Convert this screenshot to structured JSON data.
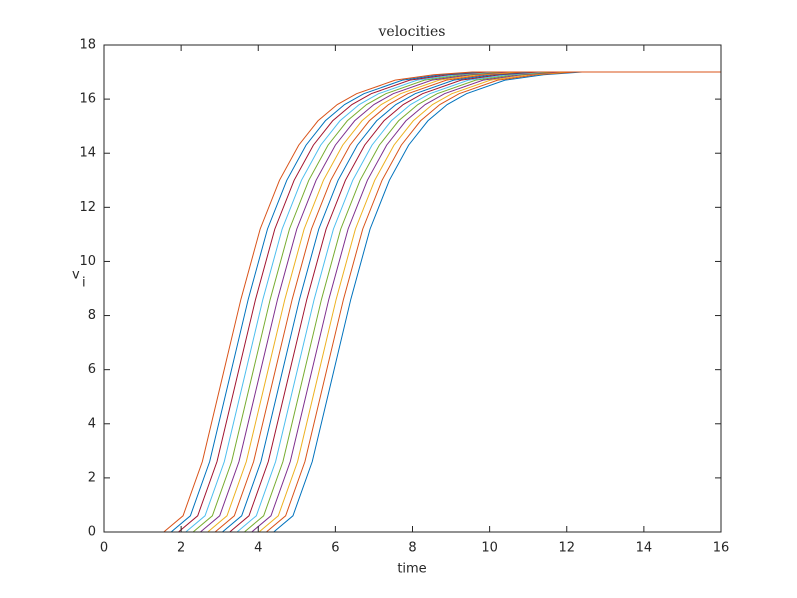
{
  "chart_data": {
    "type": "line",
    "title": "velocities",
    "xlabel": "time",
    "ylabel": "v",
    "ylabel_subscript": "i",
    "xlim": [
      0,
      16
    ],
    "ylim": [
      0,
      18
    ],
    "xticks": [
      0,
      2,
      4,
      6,
      8,
      10,
      12,
      14,
      16
    ],
    "yticks": [
      0,
      2,
      4,
      6,
      8,
      10,
      12,
      14,
      16,
      18
    ],
    "series": [
      {
        "color": "#0072BD",
        "x": [
          0,
          4.4,
          4.9,
          5.4,
          5.9,
          6.4,
          6.9,
          7.4,
          7.9,
          8.4,
          8.9,
          9.4,
          10.4,
          11.4,
          12.4,
          16
        ],
        "values": [
          0,
          0,
          0.6,
          2.6,
          5.6,
          8.6,
          11.2,
          13,
          14.3,
          15.2,
          15.8,
          16.2,
          16.7,
          16.9,
          17,
          17
        ]
      },
      {
        "color": "#D95319",
        "x": [
          0,
          4.21,
          4.71,
          5.21,
          5.71,
          6.21,
          6.71,
          7.21,
          7.71,
          8.21,
          8.71,
          9.21,
          10.21,
          11.21,
          12.21,
          16
        ],
        "values": [
          0,
          0,
          0.6,
          2.6,
          5.6,
          8.6,
          11.2,
          13,
          14.3,
          15.2,
          15.8,
          16.2,
          16.7,
          16.9,
          17,
          17
        ]
      },
      {
        "color": "#EDB120",
        "x": [
          0,
          4.02,
          4.52,
          5.02,
          5.52,
          6.02,
          6.52,
          7.02,
          7.52,
          8.02,
          8.52,
          9.02,
          10.02,
          11.02,
          12.02,
          16
        ],
        "values": [
          0,
          0,
          0.6,
          2.6,
          5.6,
          8.6,
          11.2,
          13,
          14.3,
          15.2,
          15.8,
          16.2,
          16.7,
          16.9,
          17,
          17
        ]
      },
      {
        "color": "#7E2F8E",
        "x": [
          0,
          3.83,
          4.33,
          4.83,
          5.33,
          5.83,
          6.33,
          6.83,
          7.33,
          7.83,
          8.33,
          8.83,
          9.83,
          10.83,
          11.83,
          16
        ],
        "values": [
          0,
          0,
          0.6,
          2.6,
          5.6,
          8.6,
          11.2,
          13,
          14.3,
          15.2,
          15.8,
          16.2,
          16.7,
          16.9,
          17,
          17
        ]
      },
      {
        "color": "#77AC30",
        "x": [
          0,
          3.64,
          4.14,
          4.64,
          5.14,
          5.64,
          6.14,
          6.64,
          7.14,
          7.64,
          8.14,
          8.64,
          9.64,
          10.64,
          11.64,
          16
        ],
        "values": [
          0,
          0,
          0.6,
          2.6,
          5.6,
          8.6,
          11.2,
          13,
          14.3,
          15.2,
          15.8,
          16.2,
          16.7,
          16.9,
          17,
          17
        ]
      },
      {
        "color": "#4DBEEE",
        "x": [
          0,
          3.45,
          3.95,
          4.45,
          4.95,
          5.45,
          5.95,
          6.45,
          6.95,
          7.45,
          7.95,
          8.45,
          9.45,
          10.45,
          11.45,
          16
        ],
        "values": [
          0,
          0,
          0.6,
          2.6,
          5.6,
          8.6,
          11.2,
          13,
          14.3,
          15.2,
          15.8,
          16.2,
          16.7,
          16.9,
          17,
          17
        ]
      },
      {
        "color": "#A2142F",
        "x": [
          0,
          3.26,
          3.76,
          4.26,
          4.76,
          5.26,
          5.76,
          6.26,
          6.76,
          7.26,
          7.76,
          8.26,
          9.26,
          10.26,
          11.26,
          16
        ],
        "values": [
          0,
          0,
          0.6,
          2.6,
          5.6,
          8.6,
          11.2,
          13,
          14.3,
          15.2,
          15.8,
          16.2,
          16.7,
          16.9,
          17,
          17
        ]
      },
      {
        "color": "#0072BD",
        "x": [
          0,
          3.07,
          3.57,
          4.07,
          4.57,
          5.07,
          5.57,
          6.07,
          6.57,
          7.07,
          7.57,
          8.07,
          9.07,
          10.07,
          11.07,
          16
        ],
        "values": [
          0,
          0,
          0.6,
          2.6,
          5.6,
          8.6,
          11.2,
          13,
          14.3,
          15.2,
          15.8,
          16.2,
          16.7,
          16.9,
          17,
          17
        ]
      },
      {
        "color": "#D95319",
        "x": [
          0,
          2.88,
          3.38,
          3.88,
          4.38,
          4.88,
          5.38,
          5.88,
          6.38,
          6.88,
          7.38,
          7.88,
          8.88,
          9.88,
          10.88,
          16
        ],
        "values": [
          0,
          0,
          0.6,
          2.6,
          5.6,
          8.6,
          11.2,
          13,
          14.3,
          15.2,
          15.8,
          16.2,
          16.7,
          16.9,
          17,
          17
        ]
      },
      {
        "color": "#EDB120",
        "x": [
          0,
          2.69,
          3.19,
          3.69,
          4.19,
          4.69,
          5.19,
          5.69,
          6.19,
          6.69,
          7.19,
          7.69,
          8.69,
          9.69,
          10.69,
          16
        ],
        "values": [
          0,
          0,
          0.6,
          2.6,
          5.6,
          8.6,
          11.2,
          13,
          14.3,
          15.2,
          15.8,
          16.2,
          16.7,
          16.9,
          17,
          17
        ]
      },
      {
        "color": "#7E2F8E",
        "x": [
          0,
          2.5,
          3,
          3.5,
          4,
          4.5,
          5,
          5.5,
          6,
          6.5,
          7,
          7.5,
          8.5,
          9.5,
          10.5,
          16
        ],
        "values": [
          0,
          0,
          0.6,
          2.6,
          5.6,
          8.6,
          11.2,
          13,
          14.3,
          15.2,
          15.8,
          16.2,
          16.7,
          16.9,
          17,
          17
        ]
      },
      {
        "color": "#77AC30",
        "x": [
          0,
          2.31,
          2.81,
          3.31,
          3.81,
          4.31,
          4.81,
          5.31,
          5.81,
          6.31,
          6.81,
          7.31,
          8.31,
          9.31,
          10.31,
          16
        ],
        "values": [
          0,
          0,
          0.6,
          2.6,
          5.6,
          8.6,
          11.2,
          13,
          14.3,
          15.2,
          15.8,
          16.2,
          16.7,
          16.9,
          17,
          17
        ]
      },
      {
        "color": "#4DBEEE",
        "x": [
          0,
          2.12,
          2.62,
          3.12,
          3.62,
          4.12,
          4.62,
          5.12,
          5.62,
          6.12,
          6.62,
          7.12,
          8.12,
          9.12,
          10.12,
          16
        ],
        "values": [
          0,
          0,
          0.6,
          2.6,
          5.6,
          8.6,
          11.2,
          13,
          14.3,
          15.2,
          15.8,
          16.2,
          16.7,
          16.9,
          17,
          17
        ]
      },
      {
        "color": "#A2142F",
        "x": [
          0,
          1.93,
          2.43,
          2.93,
          3.43,
          3.93,
          4.43,
          4.93,
          5.43,
          5.93,
          6.43,
          6.93,
          7.93,
          8.93,
          9.93,
          16
        ],
        "values": [
          0,
          0,
          0.6,
          2.6,
          5.6,
          8.6,
          11.2,
          13,
          14.3,
          15.2,
          15.8,
          16.2,
          16.7,
          16.9,
          17,
          17
        ]
      },
      {
        "color": "#0072BD",
        "x": [
          0,
          1.74,
          2.24,
          2.74,
          3.24,
          3.74,
          4.24,
          4.74,
          5.24,
          5.74,
          6.24,
          6.74,
          7.74,
          8.74,
          9.74,
          16
        ],
        "values": [
          0,
          0,
          0.6,
          2.6,
          5.6,
          8.6,
          11.2,
          13,
          14.3,
          15.2,
          15.8,
          16.2,
          16.7,
          16.9,
          17,
          17
        ]
      },
      {
        "color": "#D95319",
        "x": [
          0,
          1.55,
          2.05,
          2.55,
          3.05,
          3.55,
          4.05,
          4.55,
          5.05,
          5.55,
          6.05,
          6.55,
          7.55,
          8.55,
          9.55,
          16
        ],
        "values": [
          0,
          0,
          0.6,
          2.6,
          5.6,
          8.6,
          11.2,
          13,
          14.3,
          15.2,
          15.8,
          16.2,
          16.7,
          16.9,
          17,
          17
        ]
      }
    ]
  }
}
